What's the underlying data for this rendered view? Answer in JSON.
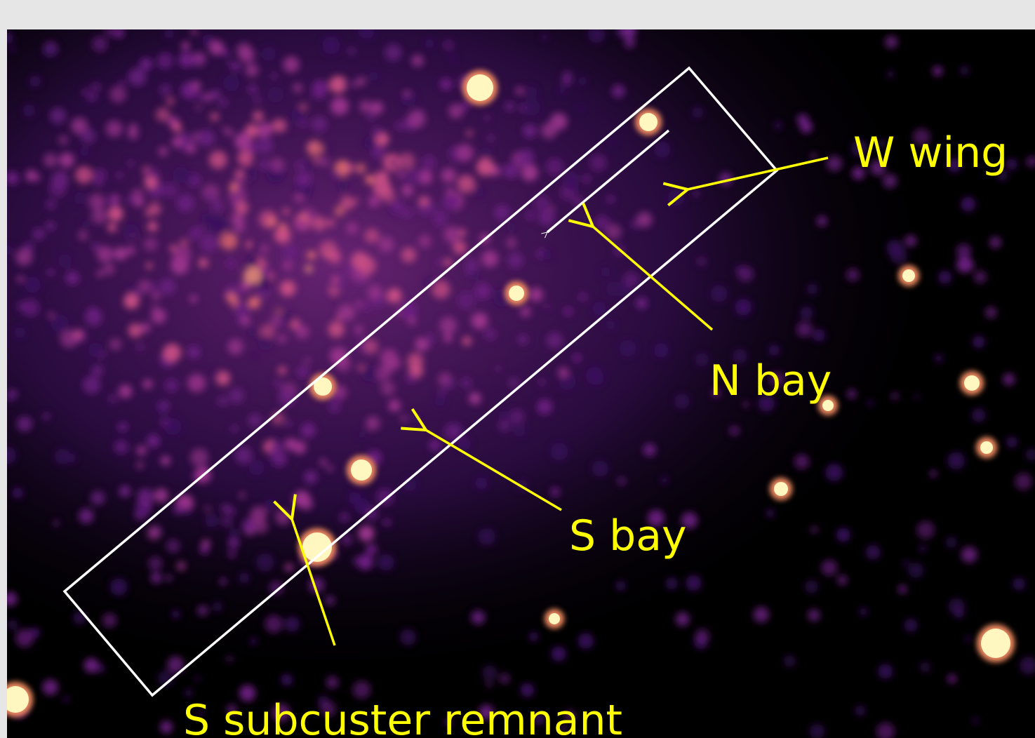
{
  "annotations": [
    {
      "label": "W wing"
    },
    {
      "label": "N bay"
    },
    {
      "label": "S bay"
    },
    {
      "label": "S subcuster remnant"
    }
  ]
}
